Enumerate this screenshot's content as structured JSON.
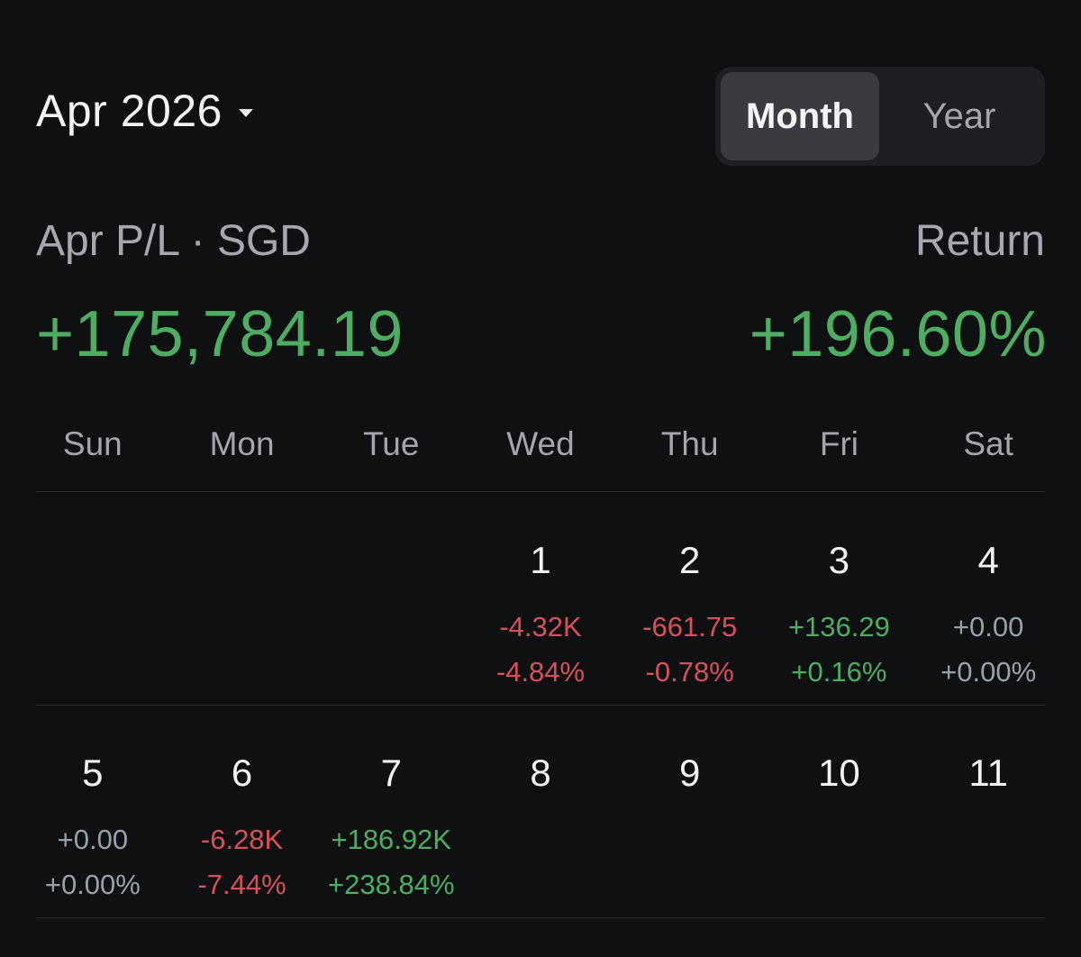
{
  "header": {
    "month_label": "Apr 2026",
    "view_toggle": [
      {
        "label": "Month",
        "active": true
      },
      {
        "label": "Year",
        "active": false
      }
    ]
  },
  "summary": {
    "pl_label": "Apr P/L · SGD",
    "pl_value": "+175,784.19",
    "return_label": "Return",
    "return_value": "+196.60%"
  },
  "calendar": {
    "weekdays": [
      "Sun",
      "Mon",
      "Tue",
      "Wed",
      "Thu",
      "Fri",
      "Sat"
    ],
    "weeks": [
      [
        null,
        null,
        null,
        {
          "day": "1",
          "amount": "-4.32K",
          "percent": "-4.84%",
          "tone": "neg"
        },
        {
          "day": "2",
          "amount": "-661.75",
          "percent": "-0.78%",
          "tone": "neg"
        },
        {
          "day": "3",
          "amount": "+136.29",
          "percent": "+0.16%",
          "tone": "pos"
        },
        {
          "day": "4",
          "amount": "+0.00",
          "percent": "+0.00%",
          "tone": "zero"
        }
      ],
      [
        {
          "day": "5",
          "amount": "+0.00",
          "percent": "+0.00%",
          "tone": "zero"
        },
        {
          "day": "6",
          "amount": "-6.28K",
          "percent": "-7.44%",
          "tone": "neg"
        },
        {
          "day": "7",
          "amount": "+186.92K",
          "percent": "+238.84%",
          "tone": "pos"
        },
        {
          "day": "8"
        },
        {
          "day": "9"
        },
        {
          "day": "10"
        },
        {
          "day": "11"
        }
      ]
    ]
  },
  "colors": {
    "positive": "#4eac63",
    "negative": "#d7505a",
    "neutral": "#9aa0aa",
    "background": "#0f1012"
  }
}
